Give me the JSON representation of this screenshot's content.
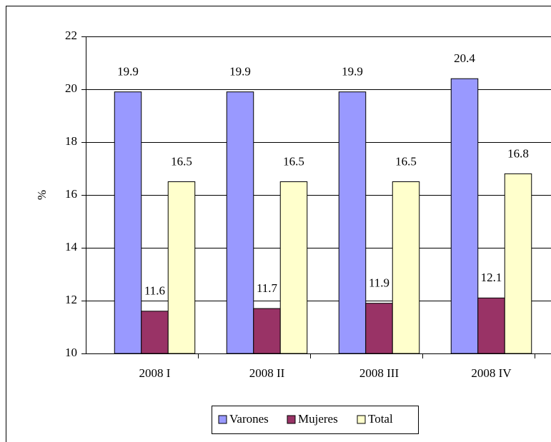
{
  "chart_data": {
    "type": "bar",
    "categories": [
      "2008 I",
      "2008 II",
      "2008 III",
      "2008 IV"
    ],
    "series": [
      {
        "name": "Varones",
        "color": "#9999ff",
        "values": [
          19.9,
          19.9,
          19.9,
          20.4
        ]
      },
      {
        "name": "Mujeres",
        "color": "#993366",
        "values": [
          11.6,
          11.7,
          11.9,
          12.1
        ]
      },
      {
        "name": "Total",
        "color": "#ffffcc",
        "values": [
          16.5,
          16.5,
          16.5,
          16.8
        ]
      }
    ],
    "y_label": "%",
    "ylim": [
      10,
      22
    ],
    "yticks": [
      10,
      12,
      14,
      16,
      18,
      20,
      22
    ],
    "grid": true,
    "legend": "bottom"
  }
}
